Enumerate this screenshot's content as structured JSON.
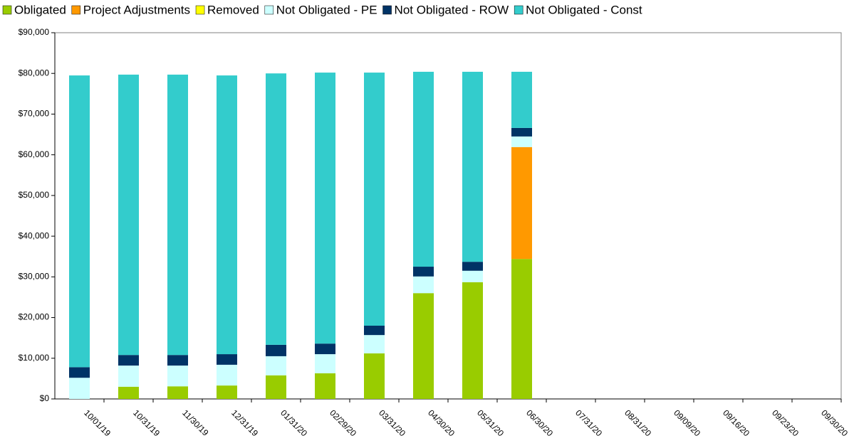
{
  "chart_data": {
    "type": "stacked_bar",
    "categories": [
      "10/01/19",
      "10/31/19",
      "11/30/19",
      "12/31/19",
      "01/31/20",
      "02/29/20",
      "03/31/20",
      "04/30/20",
      "05/31/20",
      "06/30/20",
      "07/31/20",
      "08/31/20",
      "09/09/20",
      "09/16/20",
      "09/23/20",
      "09/30/20"
    ],
    "series": [
      {
        "name": "Obligated",
        "color": "#99cc00",
        "values": [
          0,
          3000,
          3100,
          3300,
          5800,
          6300,
          11200,
          26000,
          28700,
          34400,
          null,
          null,
          null,
          null,
          null,
          null
        ]
      },
      {
        "name": "Project Adjustments",
        "color": "#ff9900",
        "values": [
          0,
          0,
          0,
          0,
          0,
          0,
          0,
          0,
          0,
          27500,
          null,
          null,
          null,
          null,
          null,
          null
        ]
      },
      {
        "name": "Removed",
        "color": "#ffff00",
        "values": [
          0,
          0,
          0,
          0,
          0,
          0,
          0,
          0,
          0,
          0,
          null,
          null,
          null,
          null,
          null,
          null
        ]
      },
      {
        "name": "Not Obligated - PE",
        "color": "#ccffff",
        "values": [
          5200,
          5200,
          5100,
          5100,
          4700,
          4700,
          4500,
          4100,
          2800,
          2600,
          null,
          null,
          null,
          null,
          null,
          null
        ]
      },
      {
        "name": "Not Obligated - ROW",
        "color": "#003366",
        "values": [
          2600,
          2600,
          2600,
          2600,
          2800,
          2600,
          2300,
          2400,
          2200,
          2100,
          null,
          null,
          null,
          null,
          null,
          null
        ]
      },
      {
        "name": "Not Obligated - Const",
        "color": "#33cccc",
        "values": [
          71700,
          68900,
          68900,
          68500,
          66700,
          66600,
          62200,
          47900,
          46700,
          13800,
          null,
          null,
          null,
          null,
          null,
          null
        ]
      }
    ],
    "ylim": [
      0,
      90000
    ],
    "yticks": [
      {
        "value": 0,
        "label": "$0"
      },
      {
        "value": 10000,
        "label": "$10,000"
      },
      {
        "value": 20000,
        "label": "$20,000"
      },
      {
        "value": 30000,
        "label": "$30,000"
      },
      {
        "value": 40000,
        "label": "$40,000"
      },
      {
        "value": 50000,
        "label": "$50,000"
      },
      {
        "value": 60000,
        "label": "$60,000"
      },
      {
        "value": 70000,
        "label": "$70,000"
      },
      {
        "value": 80000,
        "label": "$80,000"
      },
      {
        "value": 90000,
        "label": "$90,000"
      }
    ],
    "legend": "top"
  }
}
